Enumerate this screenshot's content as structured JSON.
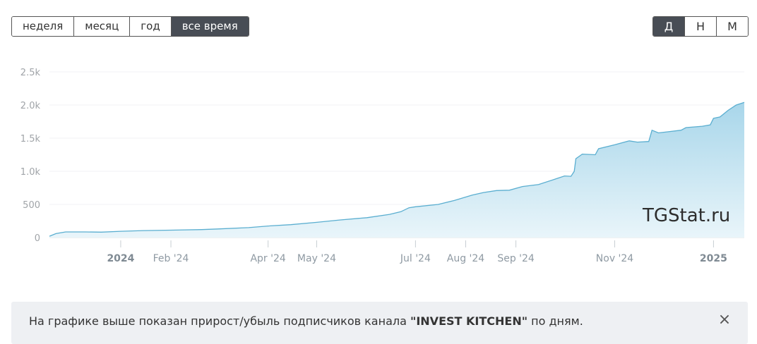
{
  "range_buttons": [
    {
      "label": "неделя",
      "active": false
    },
    {
      "label": "месяц",
      "active": false
    },
    {
      "label": "год",
      "active": false
    },
    {
      "label": "все время",
      "active": true
    }
  ],
  "granularity_buttons": [
    {
      "label": "Д",
      "active": true
    },
    {
      "label": "Н",
      "active": false
    },
    {
      "label": "М",
      "active": false
    }
  ],
  "watermark": "TGStat.ru",
  "info": {
    "prefix": "На графике выше показан прирост/убыль подписчиков канала ",
    "channel": "\"INVEST KITCHEN\"",
    "suffix": " по дням."
  },
  "colors": {
    "line": "#5aaed0",
    "fill_top": "#a8d6ea",
    "fill_bottom": "#e9f5fa",
    "active_button": "#484d55"
  },
  "chart_data": {
    "type": "area",
    "title": "",
    "xlabel": "",
    "ylabel": "",
    "ylim": [
      0,
      2500
    ],
    "yticks": [
      {
        "value": 0,
        "label": "0"
      },
      {
        "value": 500,
        "label": "500"
      },
      {
        "value": 1000,
        "label": "1.0k"
      },
      {
        "value": 1500,
        "label": "1.5k"
      },
      {
        "value": 2000,
        "label": "2.0k"
      },
      {
        "value": 2500,
        "label": "2.5k"
      }
    ],
    "xlim": [
      "2023-11-18",
      "2025-01-20"
    ],
    "xticks": [
      {
        "date": "2024-01-01",
        "label": "2024",
        "bold": true
      },
      {
        "date": "2024-02-01",
        "label": "Feb '24",
        "bold": false
      },
      {
        "date": "2024-04-01",
        "label": "Apr '24",
        "bold": false
      },
      {
        "date": "2024-05-01",
        "label": "May '24",
        "bold": false
      },
      {
        "date": "2024-07-01",
        "label": "Jul '24",
        "bold": false
      },
      {
        "date": "2024-08-01",
        "label": "Aug '24",
        "bold": false
      },
      {
        "date": "2024-09-01",
        "label": "Sep '24",
        "bold": false
      },
      {
        "date": "2024-11-01",
        "label": "Nov '24",
        "bold": false
      },
      {
        "date": "2025-01-01",
        "label": "2025",
        "bold": true
      }
    ],
    "grid": true,
    "legend": "none",
    "series": [
      {
        "points": [
          [
            "2023-11-18",
            20
          ],
          [
            "2023-11-22",
            60
          ],
          [
            "2023-11-28",
            85
          ],
          [
            "2023-12-10",
            85
          ],
          [
            "2023-12-20",
            82
          ],
          [
            "2024-01-01",
            95
          ],
          [
            "2024-01-15",
            105
          ],
          [
            "2024-02-01",
            112
          ],
          [
            "2024-02-20",
            120
          ],
          [
            "2024-03-01",
            130
          ],
          [
            "2024-03-20",
            150
          ],
          [
            "2024-04-01",
            175
          ],
          [
            "2024-04-15",
            195
          ],
          [
            "2024-05-01",
            230
          ],
          [
            "2024-05-15",
            265
          ],
          [
            "2024-06-01",
            300
          ],
          [
            "2024-06-15",
            350
          ],
          [
            "2024-06-22",
            390
          ],
          [
            "2024-06-27",
            450
          ],
          [
            "2024-07-01",
            465
          ],
          [
            "2024-07-15",
            500
          ],
          [
            "2024-07-25",
            560
          ],
          [
            "2024-08-05",
            640
          ],
          [
            "2024-08-12",
            680
          ],
          [
            "2024-08-20",
            710
          ],
          [
            "2024-08-28",
            715
          ],
          [
            "2024-09-05",
            770
          ],
          [
            "2024-09-15",
            800
          ],
          [
            "2024-09-25",
            880
          ],
          [
            "2024-10-01",
            930
          ],
          [
            "2024-10-05",
            925
          ],
          [
            "2024-10-07",
            1000
          ],
          [
            "2024-10-08",
            1190
          ],
          [
            "2024-10-12",
            1260
          ],
          [
            "2024-10-20",
            1250
          ],
          [
            "2024-10-22",
            1340
          ],
          [
            "2024-11-01",
            1400
          ],
          [
            "2024-11-10",
            1460
          ],
          [
            "2024-11-15",
            1440
          ],
          [
            "2024-11-22",
            1450
          ],
          [
            "2024-11-24",
            1620
          ],
          [
            "2024-11-28",
            1580
          ],
          [
            "2024-12-05",
            1600
          ],
          [
            "2024-12-12",
            1620
          ],
          [
            "2024-12-15",
            1660
          ],
          [
            "2024-12-25",
            1680
          ],
          [
            "2024-12-30",
            1700
          ],
          [
            "2025-01-01",
            1800
          ],
          [
            "2025-01-05",
            1820
          ],
          [
            "2025-01-10",
            1920
          ],
          [
            "2025-01-15",
            2000
          ],
          [
            "2025-01-20",
            2040
          ]
        ]
      }
    ]
  }
}
